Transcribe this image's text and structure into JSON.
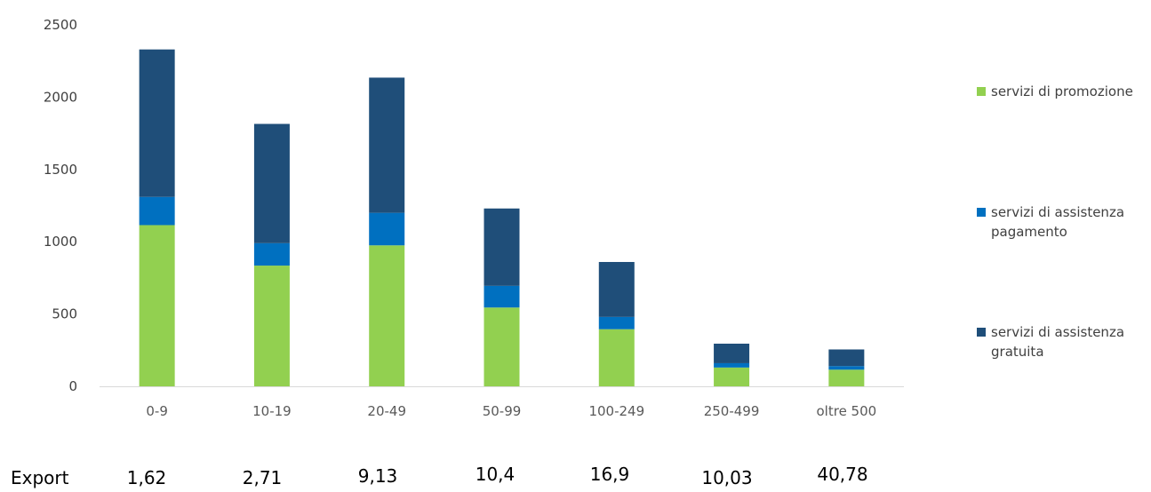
{
  "chart_data": {
    "type": "bar",
    "stacked": true,
    "categories": [
      "0-9",
      "10-19",
      "20-49",
      "50-99",
      "100-249",
      "250-499",
      "oltre 500"
    ],
    "series": [
      {
        "name": "servizi di promozione",
        "color": "#92d050",
        "values": [
          1115,
          835,
          975,
          545,
          395,
          130,
          115
        ]
      },
      {
        "name": "servizi di assistenza pagamento",
        "color": "#0070c0",
        "values": [
          195,
          155,
          225,
          150,
          85,
          30,
          25
        ]
      },
      {
        "name": "servizi di assistenza gratuita",
        "color": "#1f4e79",
        "values": [
          1020,
          825,
          935,
          535,
          380,
          135,
          115
        ]
      }
    ],
    "y_ticks": [
      "0",
      "500",
      "1000",
      "1500",
      "2000",
      "2500"
    ],
    "ylim": [
      0,
      2500
    ],
    "grid": false,
    "legend_position": "right",
    "export_label": "Export",
    "export_values": [
      "1,62",
      "2,71",
      "9,13",
      "10,4",
      "16,9",
      "10,03",
      "40,78"
    ]
  }
}
